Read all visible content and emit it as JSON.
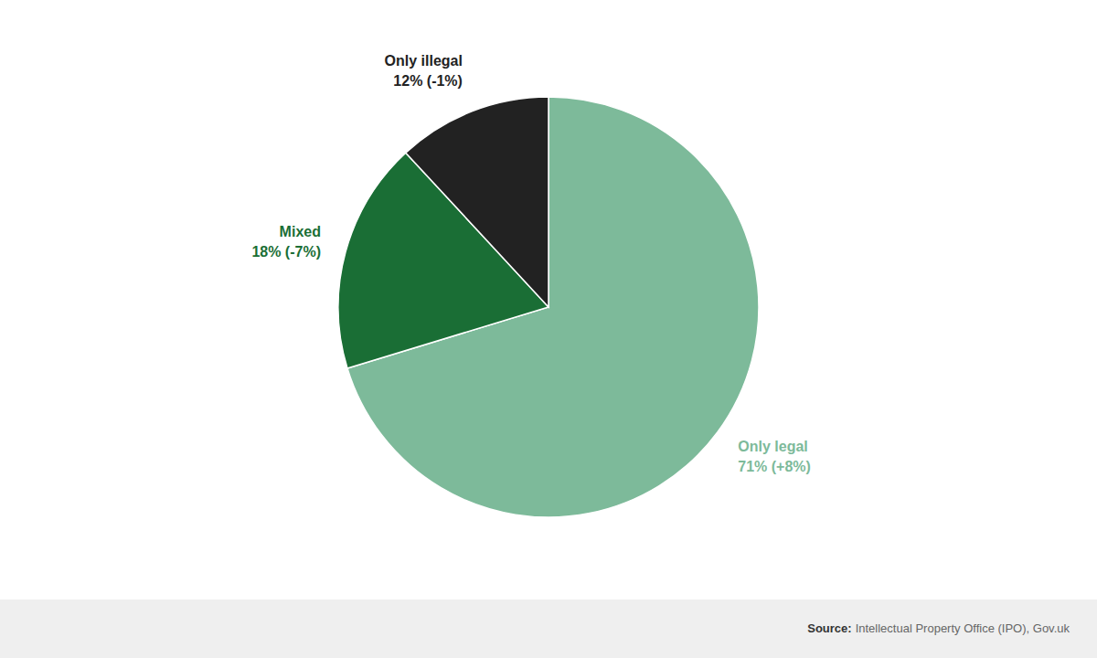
{
  "chart_data": {
    "type": "pie",
    "categories": [
      "Only legal",
      "Mixed",
      "Only illegal"
    ],
    "values": [
      71,
      18,
      12
    ],
    "value_labels": [
      "71% (+8%)",
      "18% (-7%)",
      "12% (-1%)"
    ],
    "colors": [
      "#7dba9a",
      "#1a6e35",
      "#222222"
    ],
    "data_labels": true,
    "annotations": [
      "Source:",
      "Intellectual Property Office (IPO), Gov.uk"
    ]
  }
}
